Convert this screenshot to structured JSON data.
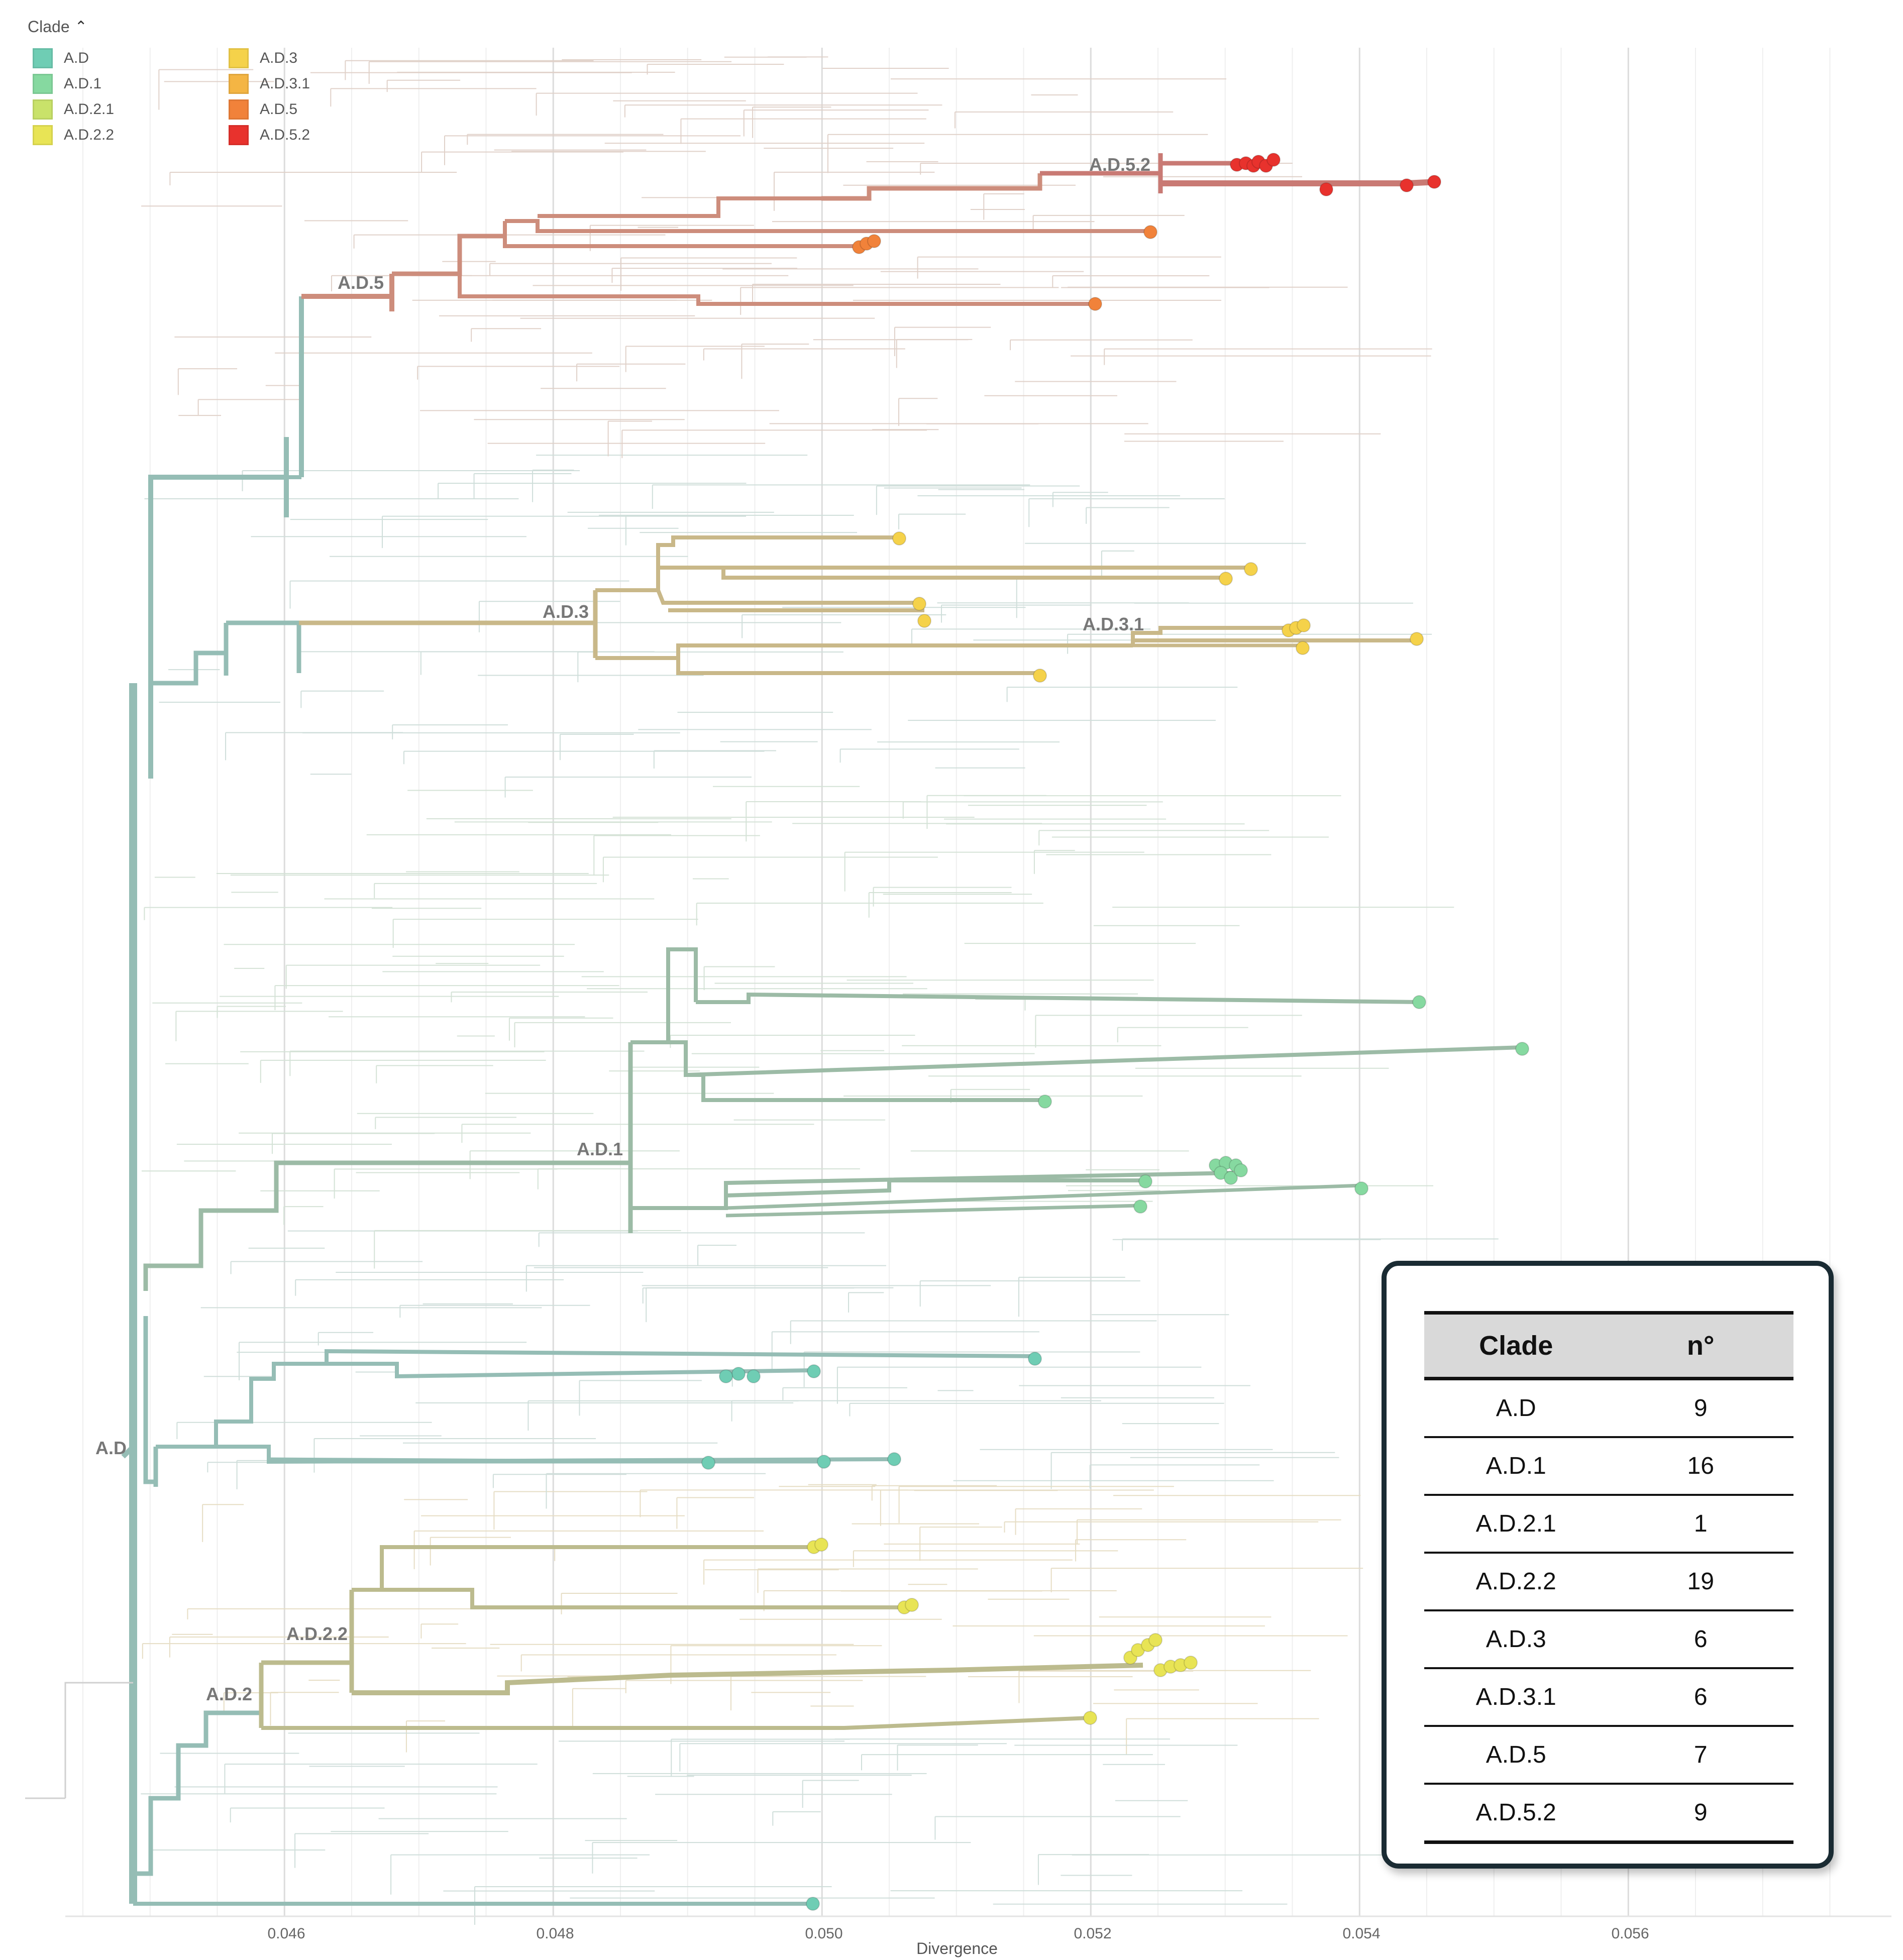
{
  "legend": {
    "title": "Clade",
    "items": [
      {
        "label": "A.D",
        "color": "#6fcdb4"
      },
      {
        "label": "A.D.1",
        "color": "#86d9a0"
      },
      {
        "label": "A.D.2.1",
        "color": "#c9e26a"
      },
      {
        "label": "A.D.2.2",
        "color": "#e8e455"
      },
      {
        "label": "A.D.3",
        "color": "#f5d24a"
      },
      {
        "label": "A.D.3.1",
        "color": "#f4b544"
      },
      {
        "label": "A.D.5",
        "color": "#f1823a"
      },
      {
        "label": "A.D.5.2",
        "color": "#e8322d"
      }
    ]
  },
  "colors": {
    "branch_ad": "#95bdb5",
    "branch_ad1": "#9cbba6",
    "branch_ad22": "#bcbb8e",
    "branch_ad3": "#c9b889",
    "branch_ad5": "#cd8d7c",
    "branch_ad52": "#c97a74",
    "tip_ad": "#6fcdb4",
    "tip_ad1": "#86d9a0",
    "tip_ad22": "#e8e455",
    "tip_ad3": "#f5d24a",
    "tip_ad5": "#f1823a",
    "tip_ad52": "#e8322d"
  },
  "axis": {
    "label": "Divergence",
    "ticks": [
      "0.046",
      "0.048",
      "0.050",
      "0.052",
      "0.054",
      "0.056"
    ],
    "range": [
      0.0448,
      0.0573
    ]
  },
  "clade_labels": [
    "A.D",
    "A.D.1",
    "A.D.2",
    "A.D.2.2",
    "A.D.3",
    "A.D.3.1",
    "A.D.5",
    "A.D.5.2"
  ],
  "table": {
    "headers": [
      "Clade",
      "n°"
    ],
    "rows": [
      {
        "clade": "A.D",
        "n": "9"
      },
      {
        "clade": "A.D.1",
        "n": "16"
      },
      {
        "clade": "A.D.2.1",
        "n": "1"
      },
      {
        "clade": "A.D.2.2",
        "n": "19"
      },
      {
        "clade": "A.D.3",
        "n": "6"
      },
      {
        "clade": "A.D.3.1",
        "n": "6"
      },
      {
        "clade": "A.D.5",
        "n": "7"
      },
      {
        "clade": "A.D.5.2",
        "n": "9"
      }
    ]
  }
}
